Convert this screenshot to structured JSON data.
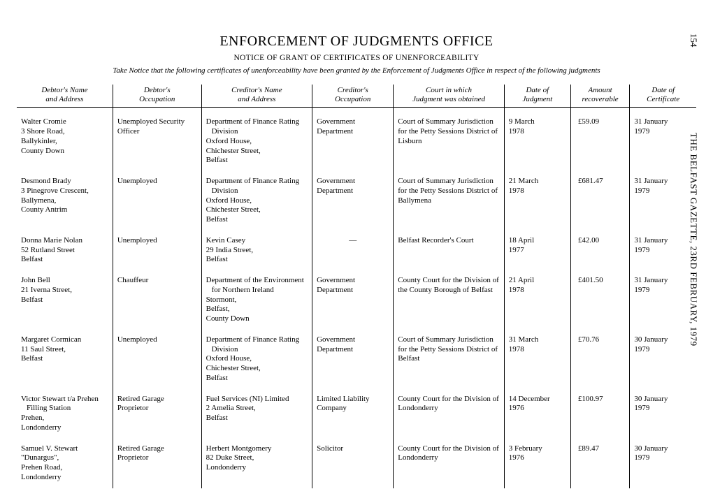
{
  "page_number": "154",
  "side_caption": "THE BELFAST GAZETTE, 23RD FEBRUARY, 1979",
  "title": "ENFORCEMENT OF JUDGMENTS OFFICE",
  "subtitle": "NOTICE OF GRANT OF CERTIFICATES OF UNENFORCEABILITY",
  "intro": "Take Notice that the following certificates of unenforceability have been granted by the Enforcement of Judgments Office in respect of the following judgments",
  "columns": [
    "Debtor's Name\nand Address",
    "Debtor's\nOccupation",
    "Creditor's Name\nand Address",
    "Creditor's\nOccupation",
    "Court in which\nJudgment was obtained",
    "Date of\nJudgment",
    "Amount\nrecoverable",
    "Date of\nCertificate"
  ],
  "rows": [
    {
      "debtor": "Walter Cromie\n3 Shore Road,\nBallykinler,\nCounty Down",
      "debtor_occ": "Unemployed Security Officer",
      "creditor": "Department of Finance Rating Division\nOxford House,\nChichester Street,\nBelfast",
      "creditor_occ": "Government Department",
      "court": "Court of Summary Jurisdiction for the Petty Sessions District of Lisburn",
      "date_judgment": "9 March 1978",
      "amount": "£59.09",
      "date_cert": "31 January 1979"
    },
    {
      "debtor": "Desmond Brady\n3 Pinegrove Crescent,\nBallymena,\nCounty Antrim",
      "debtor_occ": "Unemployed",
      "creditor": "Department of Finance Rating Division\nOxford House,\nChichester Street,\nBelfast",
      "creditor_occ": "Government Department",
      "court": "Court of Summary Jurisdiction for the Petty Sessions District of Ballymena",
      "date_judgment": "21 March 1978",
      "amount": "£681.47",
      "date_cert": "31 January 1979"
    },
    {
      "debtor": "Donna Marie Nolan\n52 Rutland Street\nBelfast",
      "debtor_occ": "Unemployed",
      "creditor": "Kevin Casey\n29 India Street,\nBelfast",
      "creditor_occ": "—",
      "court": "Belfast Recorder's Court",
      "date_judgment": "18 April 1977",
      "amount": "£42.00",
      "date_cert": "31 January 1979"
    },
    {
      "debtor": "John Bell\n21 Iverna Street,\nBelfast",
      "debtor_occ": "Chauffeur",
      "creditor": "Department of the Environment for Northern Ireland\nStormont,\nBelfast,\nCounty Down",
      "creditor_occ": "Government Department",
      "court": "County Court for the Division of the County Borough of Belfast",
      "date_judgment": "21 April 1978",
      "amount": "£401.50",
      "date_cert": "31 January 1979"
    },
    {
      "debtor": "Margaret Cormican\n11 Saul Street,\nBelfast",
      "debtor_occ": "Unemployed",
      "creditor": "Department of Finance Rating Division\nOxford House,\nChichester Street,\nBelfast",
      "creditor_occ": "Government Department",
      "court": "Court of Summary Jurisdiction for the Petty Sessions District of Belfast",
      "date_judgment": "31 March 1978",
      "amount": "£70.76",
      "date_cert": "30 January 1979"
    },
    {
      "debtor": "Victor Stewart t/a Prehen Filling Station\nPrehen,\nLondonderry",
      "debtor_occ": "Retired Garage Proprietor",
      "creditor": "Fuel Services (NI) Limited\n2 Amelia Street,\nBelfast",
      "creditor_occ": "Limited Liability Company",
      "court": "County Court for the Division of Londonderry",
      "date_judgment": "14 December 1976",
      "amount": "£100.97",
      "date_cert": "30 January 1979"
    },
    {
      "debtor": "Samuel V. Stewart\n\"Dunargus\",\nPrehen Road,\nLondonderry",
      "debtor_occ": "Retired Garage Proprietor",
      "creditor": "Herbert Montgomery\n82 Duke Street,\nLondonderry",
      "creditor_occ": "Solicitor",
      "court": "County Court for the Division of Londonderry",
      "date_judgment": "3 February 1976",
      "amount": "£89.47",
      "date_cert": "30 January 1979"
    }
  ]
}
